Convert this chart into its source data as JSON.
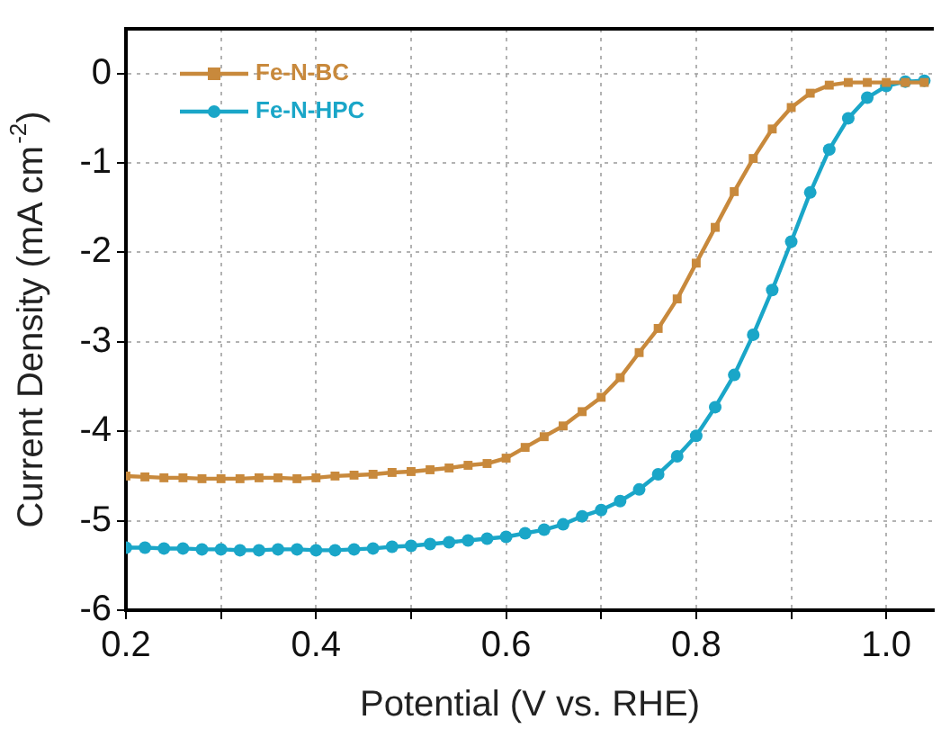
{
  "chart_data": {
    "type": "line",
    "xlabel": "Potential (V vs. RHE)",
    "ylabel": "Current Density (mA cm$^{-2}$)",
    "x": [
      0.2,
      0.22,
      0.24,
      0.26,
      0.28,
      0.3,
      0.32,
      0.34,
      0.36,
      0.38,
      0.4,
      0.42,
      0.44,
      0.46,
      0.48,
      0.5,
      0.52,
      0.54,
      0.56,
      0.58,
      0.6,
      0.62,
      0.64,
      0.66,
      0.68,
      0.7,
      0.72,
      0.74,
      0.76,
      0.78,
      0.8,
      0.82,
      0.84,
      0.86,
      0.88,
      0.9,
      0.92,
      0.94,
      0.96,
      0.98,
      1.0,
      1.02,
      1.04
    ],
    "series": [
      {
        "name": "Fe-N-BC",
        "color": "#c8893c",
        "marker": "square",
        "values": [
          -4.5,
          -4.51,
          -4.52,
          -4.52,
          -4.53,
          -4.53,
          -4.53,
          -4.52,
          -4.52,
          -4.53,
          -4.52,
          -4.5,
          -4.49,
          -4.48,
          -4.46,
          -4.45,
          -4.43,
          -4.41,
          -4.38,
          -4.36,
          -4.3,
          -4.18,
          -4.06,
          -3.94,
          -3.78,
          -3.62,
          -3.4,
          -3.12,
          -2.85,
          -2.52,
          -2.12,
          -1.72,
          -1.32,
          -0.95,
          -0.62,
          -0.38,
          -0.22,
          -0.13,
          -0.1,
          -0.1,
          -0.1,
          -0.1,
          -0.1
        ]
      },
      {
        "name": "Fe-N-HPC",
        "color": "#1aa6c8",
        "marker": "circle",
        "values": [
          -5.3,
          -5.3,
          -5.31,
          -5.31,
          -5.32,
          -5.32,
          -5.33,
          -5.33,
          -5.32,
          -5.32,
          -5.33,
          -5.33,
          -5.32,
          -5.31,
          -5.29,
          -5.28,
          -5.26,
          -5.24,
          -5.22,
          -5.2,
          -5.18,
          -5.14,
          -5.1,
          -5.04,
          -4.95,
          -4.88,
          -4.78,
          -4.65,
          -4.48,
          -4.28,
          -4.05,
          -3.73,
          -3.37,
          -2.92,
          -2.42,
          -1.88,
          -1.33,
          -0.85,
          -0.5,
          -0.27,
          -0.14,
          -0.09,
          -0.08
        ]
      }
    ],
    "xlim": [
      0.2,
      1.05
    ],
    "ylim": [
      -6,
      0.5
    ],
    "xticks": [
      0.2,
      {
        "value": 0.3,
        "label": null
      },
      0.4,
      {
        "value": 0.5,
        "label": null
      },
      0.6,
      {
        "value": 0.7,
        "label": null
      },
      0.8,
      {
        "value": 0.9,
        "label": null
      },
      {
        "value": 1.0,
        "label": "1.0"
      }
    ],
    "yticks": [
      -6,
      -5,
      -4,
      -3,
      -2,
      -1,
      0
    ],
    "grid": true,
    "legend": "top left",
    "line_style": "solid"
  }
}
